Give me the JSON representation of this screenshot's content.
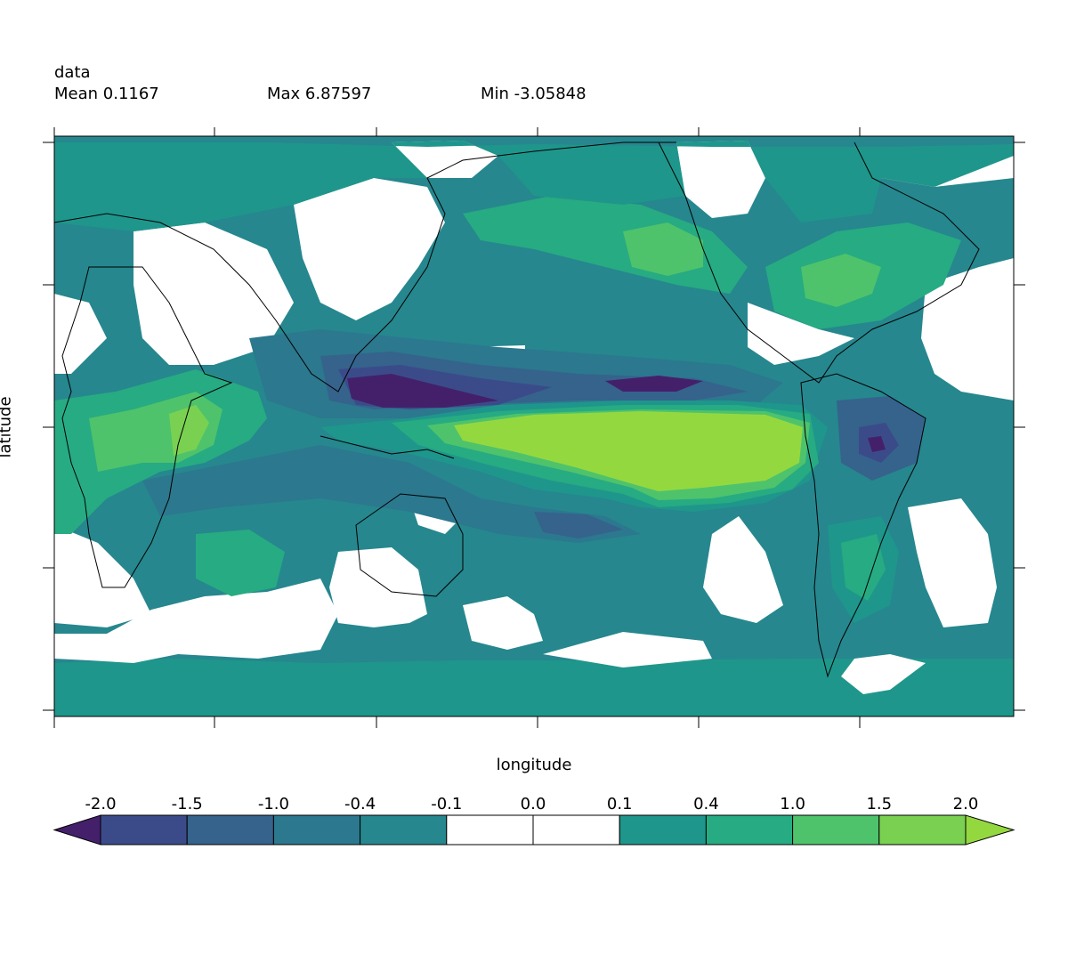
{
  "header": {
    "variable": "data",
    "mean_label": "Mean 0.1167",
    "max_label": "Max 6.87597",
    "min_label": "Min -3.05848"
  },
  "axes": {
    "xlabel": "longitude",
    "ylabel": "latitude"
  },
  "colorbar": {
    "levels": [
      "-2.0",
      "-1.5",
      "-1.0",
      "-0.4",
      "-0.1",
      "0.0",
      "0.1",
      "0.4",
      "1.0",
      "1.5",
      "2.0"
    ],
    "colors": [
      "#44206b",
      "#3b4b8a",
      "#35638c",
      "#2c788e",
      "#26878e",
      "#ffffff",
      "#ffffff",
      "#1f968b",
      "#27ab82",
      "#4ec36b",
      "#7ad151",
      "#94d840"
    ],
    "extend": "both"
  },
  "map": {
    "ocean_background": "#26878e",
    "coastline_color": "#000000"
  }
}
